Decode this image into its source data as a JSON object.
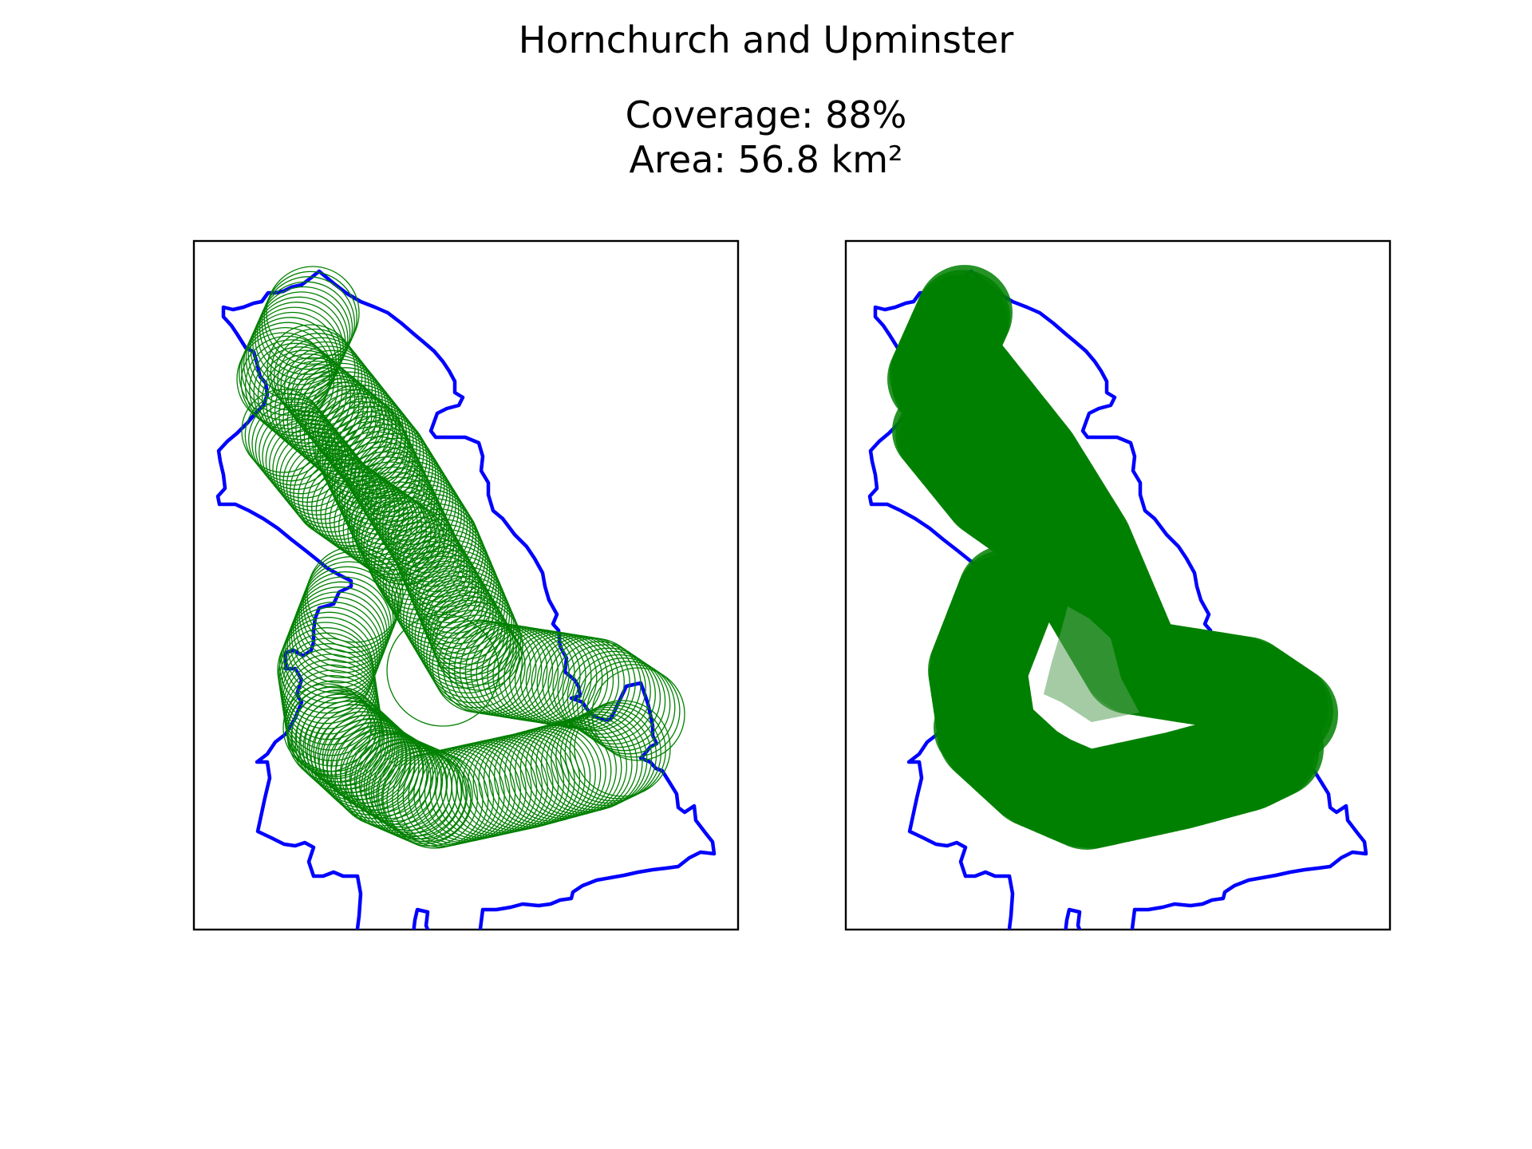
{
  "figure": {
    "title": "Hornchurch and Upminster",
    "coverage_text": "Coverage: 88%",
    "area_text": "Area: 56.8 km²"
  },
  "chart_data": [
    {
      "type": "map",
      "panel": "left",
      "layers": [
        "boundary-outline",
        "coverage-circle-outlines"
      ],
      "coverage_percent": 88,
      "area_km2": 56.8
    },
    {
      "type": "map",
      "panel": "right",
      "layers": [
        "boundary-outline",
        "coverage-filled"
      ],
      "coverage_percent": 88,
      "area_km2": 56.8
    }
  ],
  "colors": {
    "boundary": "#0000ff",
    "coverage": "#008000",
    "frame": "#000000",
    "background": "#ffffff"
  }
}
